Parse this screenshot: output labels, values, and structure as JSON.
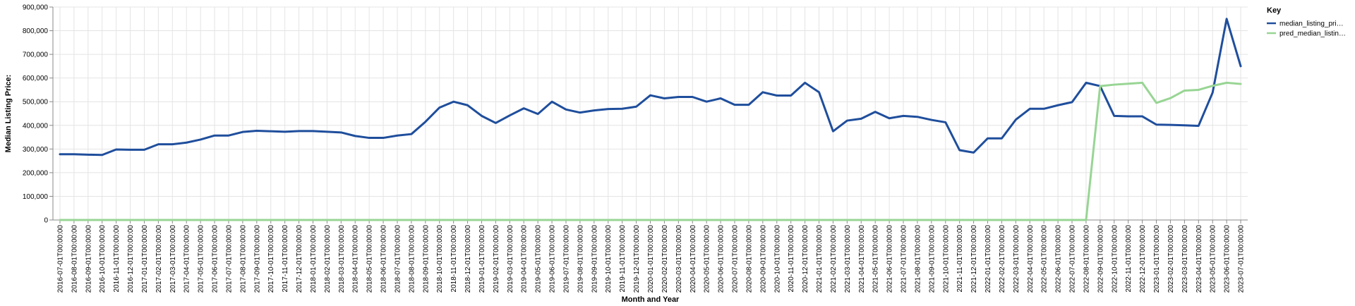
{
  "chart_data": {
    "type": "line",
    "xlabel": "Month and Year",
    "ylabel": "Median Listing Price:",
    "ylim": [
      0,
      900000
    ],
    "yticks": [
      "0",
      "100,000",
      "200,000",
      "300,000",
      "400,000",
      "500,000",
      "600,000",
      "700,000",
      "800,000",
      "900,000"
    ],
    "grid": true,
    "legend": {
      "title": "Key",
      "position": "top-right"
    },
    "categories": [
      "2016-07-01T00:00:00",
      "2016-08-01T00:00:00",
      "2016-09-01T00:00:00",
      "2016-10-01T00:00:00",
      "2016-11-01T00:00:00",
      "2016-12-01T00:00:00",
      "2017-01-01T00:00:00",
      "2017-02-01T00:00:00",
      "2017-03-01T00:00:00",
      "2017-04-01T00:00:00",
      "2017-05-01T00:00:00",
      "2017-06-01T00:00:00",
      "2017-07-01T00:00:00",
      "2017-08-01T00:00:00",
      "2017-09-01T00:00:00",
      "2017-10-01T00:00:00",
      "2017-11-01T00:00:00",
      "2017-12-01T00:00:00",
      "2018-01-01T00:00:00",
      "2018-02-01T00:00:00",
      "2018-03-01T00:00:00",
      "2018-04-01T00:00:00",
      "2018-05-01T00:00:00",
      "2018-06-01T00:00:00",
      "2018-07-01T00:00:00",
      "2018-08-01T00:00:00",
      "2018-09-01T00:00:00",
      "2018-10-01T00:00:00",
      "2018-11-01T00:00:00",
      "2018-12-01T00:00:00",
      "2019-01-01T00:00:00",
      "2019-02-01T00:00:00",
      "2019-03-01T00:00:00",
      "2019-04-01T00:00:00",
      "2019-05-01T00:00:00",
      "2019-06-01T00:00:00",
      "2019-07-01T00:00:00",
      "2019-08-01T00:00:00",
      "2019-09-01T00:00:00",
      "2019-10-01T00:00:00",
      "2019-11-01T00:00:00",
      "2019-12-01T00:00:00",
      "2020-01-01T00:00:00",
      "2020-02-01T00:00:00",
      "2020-03-01T00:00:00",
      "2020-04-01T00:00:00",
      "2020-05-01T00:00:00",
      "2020-06-01T00:00:00",
      "2020-07-01T00:00:00",
      "2020-08-01T00:00:00",
      "2020-09-01T00:00:00",
      "2020-10-01T00:00:00",
      "2020-11-01T00:00:00",
      "2020-12-01T00:00:00",
      "2021-01-01T00:00:00",
      "2021-02-01T00:00:00",
      "2021-03-01T00:00:00",
      "2021-04-01T00:00:00",
      "2021-05-01T00:00:00",
      "2021-06-01T00:00:00",
      "2021-07-01T00:00:00",
      "2021-08-01T00:00:00",
      "2021-09-01T00:00:00",
      "2021-10-01T00:00:00",
      "2021-11-01T00:00:00",
      "2021-12-01T00:00:00",
      "2022-01-01T00:00:00",
      "2022-02-01T00:00:00",
      "2022-03-01T00:00:00",
      "2022-04-01T00:00:00",
      "2022-05-01T00:00:00",
      "2022-06-01T00:00:00",
      "2022-07-01T00:00:00",
      "2022-08-01T00:00:00",
      "2022-09-01T00:00:00",
      "2022-10-01T00:00:00",
      "2022-11-01T00:00:00",
      "2022-12-01T00:00:00",
      "2023-01-01T00:00:00",
      "2023-02-01T00:00:00",
      "2023-03-01T00:00:00",
      "2023-04-01T00:00:00",
      "2023-05-01T00:00:00",
      "2023-06-01T00:00:00",
      "2023-07-01T00:00:00"
    ],
    "series": [
      {
        "name": "median_listing_pri…",
        "color": "#1f4e9c",
        "values": [
          278000,
          278000,
          276000,
          275000,
          298000,
          297000,
          297000,
          320000,
          320000,
          327000,
          340000,
          357000,
          357000,
          372000,
          377000,
          375000,
          373000,
          376000,
          376000,
          373000,
          370000,
          355000,
          347000,
          347000,
          357000,
          363000,
          415000,
          475000,
          500000,
          485000,
          440000,
          410000,
          442000,
          472000,
          448000,
          500000,
          467000,
          454000,
          463000,
          469000,
          470000,
          479000,
          527000,
          514000,
          520000,
          520000,
          500000,
          514000,
          487000,
          487000,
          540000,
          526000,
          526000,
          580000,
          540000,
          375000,
          420000,
          428000,
          457000,
          430000,
          440000,
          436000,
          423000,
          413000,
          295000,
          285000,
          345000,
          345000,
          424000,
          470000,
          470000,
          485000,
          498000,
          580000,
          566000,
          440000,
          438000,
          438000,
          403000,
          402000,
          400000,
          398000,
          538000,
          850000,
          650000
        ]
      },
      {
        "name": "pred_median_listin…",
        "color": "#98d594",
        "values": [
          0,
          0,
          0,
          0,
          0,
          0,
          0,
          0,
          0,
          0,
          0,
          0,
          0,
          0,
          0,
          0,
          0,
          0,
          0,
          0,
          0,
          0,
          0,
          0,
          0,
          0,
          0,
          0,
          0,
          0,
          0,
          0,
          0,
          0,
          0,
          0,
          0,
          0,
          0,
          0,
          0,
          0,
          0,
          0,
          0,
          0,
          0,
          0,
          0,
          0,
          0,
          0,
          0,
          0,
          0,
          0,
          0,
          0,
          0,
          0,
          0,
          0,
          0,
          0,
          0,
          0,
          0,
          0,
          0,
          0,
          0,
          0,
          0,
          0,
          566000,
          572000,
          576000,
          580000,
          495000,
          515000,
          547000,
          550000,
          567000,
          580000,
          575000
        ]
      }
    ]
  }
}
